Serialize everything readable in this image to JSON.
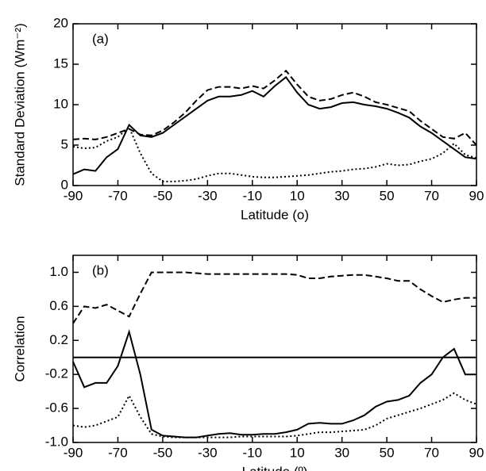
{
  "chart_data": [
    {
      "type": "line",
      "annotation": "(a)",
      "y_label": "Standard Deviation (Wm⁻²)",
      "x_label": "Latitude (o)",
      "x": [
        -90,
        -85,
        -80,
        -75,
        -70,
        -65,
        -60,
        -55,
        -50,
        -45,
        -40,
        -35,
        -30,
        -25,
        -20,
        -15,
        -10,
        -5,
        0,
        5,
        10,
        15,
        20,
        25,
        30,
        35,
        40,
        45,
        50,
        55,
        60,
        65,
        70,
        75,
        80,
        85,
        90
      ],
      "xlim": [
        -90,
        90
      ],
      "xticks": [
        -90,
        -70,
        -50,
        -30,
        -10,
        10,
        30,
        50,
        70,
        90
      ],
      "ylim": [
        0,
        20
      ],
      "yticks": [
        0,
        5,
        10,
        15,
        20
      ],
      "series": [
        {
          "color": "#000000",
          "style": "solid",
          "values": [
            1.4,
            2.0,
            1.8,
            3.5,
            4.5,
            7.5,
            6.2,
            6.0,
            6.5,
            7.5,
            8.5,
            9.5,
            10.5,
            11.0,
            11.0,
            11.2,
            11.7,
            11.0,
            12.3,
            13.4,
            11.5,
            10.0,
            9.5,
            9.7,
            10.2,
            10.3,
            10.0,
            9.8,
            9.5,
            9.0,
            8.4,
            7.3,
            6.5,
            5.5,
            4.5,
            3.5,
            3.3
          ]
        },
        {
          "color": "#000000",
          "style": "dashed",
          "values": [
            5.7,
            5.8,
            5.7,
            6.0,
            6.5,
            7.0,
            6.3,
            6.2,
            6.8,
            7.8,
            9.0,
            10.5,
            11.8,
            12.2,
            12.2,
            12.0,
            12.3,
            12.0,
            13.0,
            14.2,
            12.5,
            11.0,
            10.5,
            10.7,
            11.2,
            11.5,
            11.0,
            10.3,
            10.0,
            9.6,
            9.2,
            8.0,
            7.0,
            6.0,
            5.8,
            6.5,
            5.0
          ]
        },
        {
          "color": "#000000",
          "style": "dotted",
          "values": [
            4.8,
            4.6,
            4.7,
            5.5,
            6.0,
            7.2,
            4.0,
            1.5,
            0.5,
            0.5,
            0.6,
            0.8,
            1.2,
            1.5,
            1.5,
            1.3,
            1.1,
            1.0,
            1.0,
            1.1,
            1.2,
            1.3,
            1.5,
            1.7,
            1.8,
            2.0,
            2.1,
            2.3,
            2.7,
            2.5,
            2.6,
            3.0,
            3.3,
            4.0,
            5.2,
            3.8,
            3.4
          ]
        }
      ]
    },
    {
      "type": "line",
      "annotation": "(b)",
      "y_label": "Correlation",
      "x_label": "Latitude (º)",
      "x": [
        -90,
        -85,
        -80,
        -75,
        -70,
        -65,
        -60,
        -55,
        -50,
        -45,
        -40,
        -35,
        -30,
        -25,
        -20,
        -15,
        -10,
        -5,
        0,
        5,
        10,
        15,
        20,
        25,
        30,
        35,
        40,
        45,
        50,
        55,
        60,
        65,
        70,
        75,
        80,
        85,
        90
      ],
      "xlim": [
        -90,
        90
      ],
      "xticks": [
        -90,
        -70,
        -50,
        -30,
        -10,
        10,
        30,
        50,
        70,
        90
      ],
      "ylim": [
        -1,
        1.2
      ],
      "yticks": [
        {
          "value": -1,
          "label": "-1.0"
        },
        -0.6,
        -0.2,
        0.2,
        0.6,
        {
          "value": 1,
          "label": "1.0"
        }
      ],
      "hline": 0,
      "series": [
        {
          "color": "#000000",
          "style": "solid",
          "values": [
            -0.05,
            -0.35,
            -0.3,
            -0.3,
            -0.1,
            0.3,
            -0.2,
            -0.85,
            -0.92,
            -0.93,
            -0.94,
            -0.94,
            -0.92,
            -0.9,
            -0.89,
            -0.91,
            -0.91,
            -0.9,
            -0.9,
            -0.88,
            -0.85,
            -0.78,
            -0.77,
            -0.78,
            -0.78,
            -0.74,
            -0.68,
            -0.58,
            -0.52,
            -0.5,
            -0.45,
            -0.3,
            -0.2,
            0.0,
            0.1,
            -0.2,
            -0.2
          ]
        },
        {
          "color": "#000000",
          "style": "dashed",
          "values": [
            0.4,
            0.6,
            0.58,
            0.62,
            0.55,
            0.48,
            0.75,
            1.0,
            1.0,
            1.0,
            1.0,
            0.99,
            0.98,
            0.98,
            0.98,
            0.98,
            0.98,
            0.98,
            0.98,
            0.98,
            0.97,
            0.93,
            0.93,
            0.95,
            0.96,
            0.97,
            0.97,
            0.95,
            0.93,
            0.9,
            0.9,
            0.8,
            0.72,
            0.65,
            0.68,
            0.7,
            0.7
          ]
        },
        {
          "color": "#000000",
          "style": "dotted",
          "values": [
            -0.8,
            -0.82,
            -0.8,
            -0.75,
            -0.7,
            -0.45,
            -0.7,
            -0.9,
            -0.93,
            -0.94,
            -0.94,
            -0.94,
            -0.94,
            -0.94,
            -0.94,
            -0.93,
            -0.93,
            -0.93,
            -0.93,
            -0.93,
            -0.92,
            -0.9,
            -0.88,
            -0.88,
            -0.87,
            -0.86,
            -0.85,
            -0.8,
            -0.72,
            -0.68,
            -0.64,
            -0.6,
            -0.55,
            -0.5,
            -0.42,
            -0.5,
            -0.55
          ]
        }
      ]
    }
  ]
}
